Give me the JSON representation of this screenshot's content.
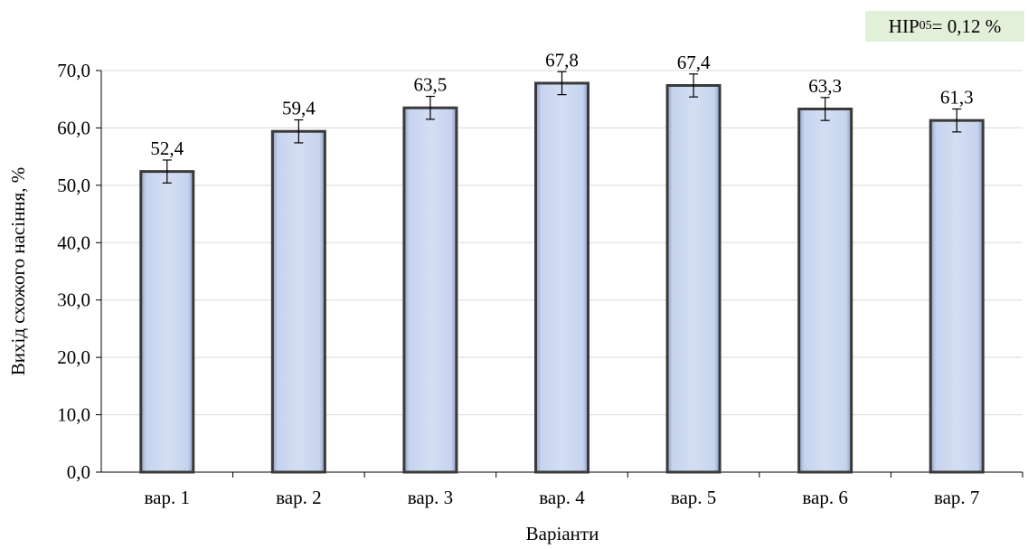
{
  "annotation": {
    "main": "НІР",
    "sub": "05",
    "tail": " = 0,12 %"
  },
  "chart_data": {
    "type": "bar",
    "title": "",
    "xlabel": "Варіанти",
    "ylabel": "Вихід схожого насіння, %",
    "categories": [
      "вар. 1",
      "вар. 2",
      "вар. 3",
      "вар. 4",
      "вар. 5",
      "вар. 6",
      "вар. 7"
    ],
    "values": [
      52.4,
      59.4,
      63.5,
      67.8,
      67.4,
      63.3,
      61.3
    ],
    "data_labels": [
      "52,4",
      "59,4",
      "63,5",
      "67,8",
      "67,4",
      "63,3",
      "61,3"
    ],
    "error": [
      2,
      2,
      2,
      2,
      2,
      2,
      2
    ],
    "ylim": [
      0,
      70
    ],
    "yticks": [
      0,
      10,
      20,
      30,
      40,
      50,
      60,
      70
    ],
    "ytick_labels": [
      "0,0",
      "10,0",
      "20,0",
      "30,0",
      "40,0",
      "50,0",
      "60,0",
      "70,0"
    ],
    "grid": true,
    "bar_color": "#c6d3ee",
    "bar_edge_color": "#3a3a3a",
    "grid_color": "#d9d9d9",
    "annotation_bg": "#e2efd9"
  }
}
